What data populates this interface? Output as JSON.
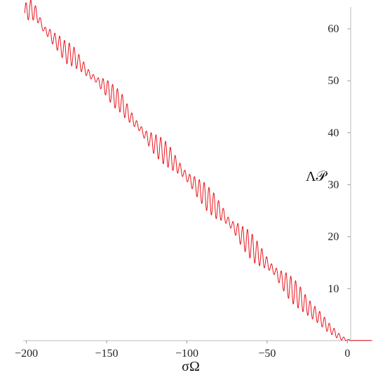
{
  "chart_data": {
    "type": "line",
    "title": "",
    "xlabel": "σΩ",
    "ylabel": "Λ𝒫",
    "xlim": [
      -202,
      16
    ],
    "ylim": [
      0,
      65
    ],
    "x_ticks": [
      -200,
      -150,
      -100,
      -50,
      0
    ],
    "x_tick_labels": [
      "−200",
      "−150",
      "−100",
      "−50",
      "0"
    ],
    "y_ticks": [
      10,
      20,
      30,
      40,
      50,
      60
    ],
    "y_tick_labels": [
      "10",
      "20",
      "30",
      "40",
      "50",
      "60"
    ],
    "grid": false,
    "legend": "none",
    "series": [
      {
        "color": "#e8141c",
        "x": [
          -201,
          -198,
          -195,
          -192,
          -189,
          -186,
          -183,
          -180,
          -177,
          -174,
          -171,
          -168,
          -165,
          -162,
          -159,
          -156,
          -153,
          -150,
          -147,
          -144,
          -141,
          -138,
          -135,
          -132,
          -129,
          -126,
          -123,
          -120,
          -117,
          -114,
          -111,
          -108,
          -105,
          -102,
          -99,
          -96,
          -93,
          -90,
          -87,
          -84,
          -81,
          -78,
          -75,
          -72,
          -69,
          -66,
          -63,
          -60,
          -57,
          -54,
          -51,
          -48,
          -45,
          -42,
          -39,
          -36,
          -33,
          -30,
          -27,
          -24,
          -21,
          -18,
          -15,
          -12,
          -9,
          -6,
          -3,
          0,
          3,
          6,
          9,
          12,
          15
        ],
        "y": [
          63.0,
          63.8,
          63.3,
          61.8,
          59.8,
          59.2,
          58.0,
          57.2,
          56.0,
          55.2,
          54.8,
          53.8,
          52.8,
          51.6,
          50.8,
          50.1,
          49.3,
          48.6,
          47.5,
          46.6,
          45.8,
          44.3,
          43.0,
          41.8,
          40.8,
          39.5,
          38.6,
          37.7,
          37.0,
          36.2,
          35.4,
          34.3,
          33.3,
          32.2,
          31.2,
          30.3,
          29.2,
          28.4,
          27.2,
          26.4,
          25.3,
          24.5,
          23.2,
          22.2,
          21.3,
          20.1,
          19.2,
          18.2,
          17.1,
          16.2,
          15.2,
          14.2,
          13.3,
          12.1,
          11.2,
          10.2,
          9.3,
          8.4,
          7.3,
          6.3,
          5.4,
          4.6,
          3.6,
          2.6,
          1.8,
          1.0,
          0.4,
          0.1,
          0.05,
          0.05,
          0.05,
          0.05,
          0.05
        ],
        "oscillation_amplitude": [
          1.8,
          1.9,
          1.7,
          0.8,
          0.6,
          0.9,
          1.3,
          1.6,
          1.9,
          2.2,
          2.0,
          1.6,
          1.2,
          0.8,
          0.6,
          0.5,
          1.2,
          1.6,
          2.0,
          2.1,
          2.0,
          1.7,
          1.2,
          0.8,
          0.6,
          0.9,
          1.5,
          2.0,
          2.3,
          2.4,
          2.2,
          1.7,
          1.2,
          0.8,
          0.9,
          1.4,
          1.9,
          2.3,
          2.5,
          2.4,
          2.0,
          1.4,
          0.8,
          0.8,
          1.4,
          2.0,
          2.4,
          2.6,
          2.4,
          1.9,
          1.3,
          0.8,
          0.8,
          1.4,
          2.0,
          2.4,
          2.5,
          2.3,
          1.9,
          1.6,
          1.4,
          1.3,
          1.2,
          1.0,
          0.8,
          0.6,
          0.4,
          0.2,
          0.0,
          0.0,
          0.0,
          0.0,
          0.0
        ],
        "oscillation_period": 3.0
      }
    ]
  }
}
